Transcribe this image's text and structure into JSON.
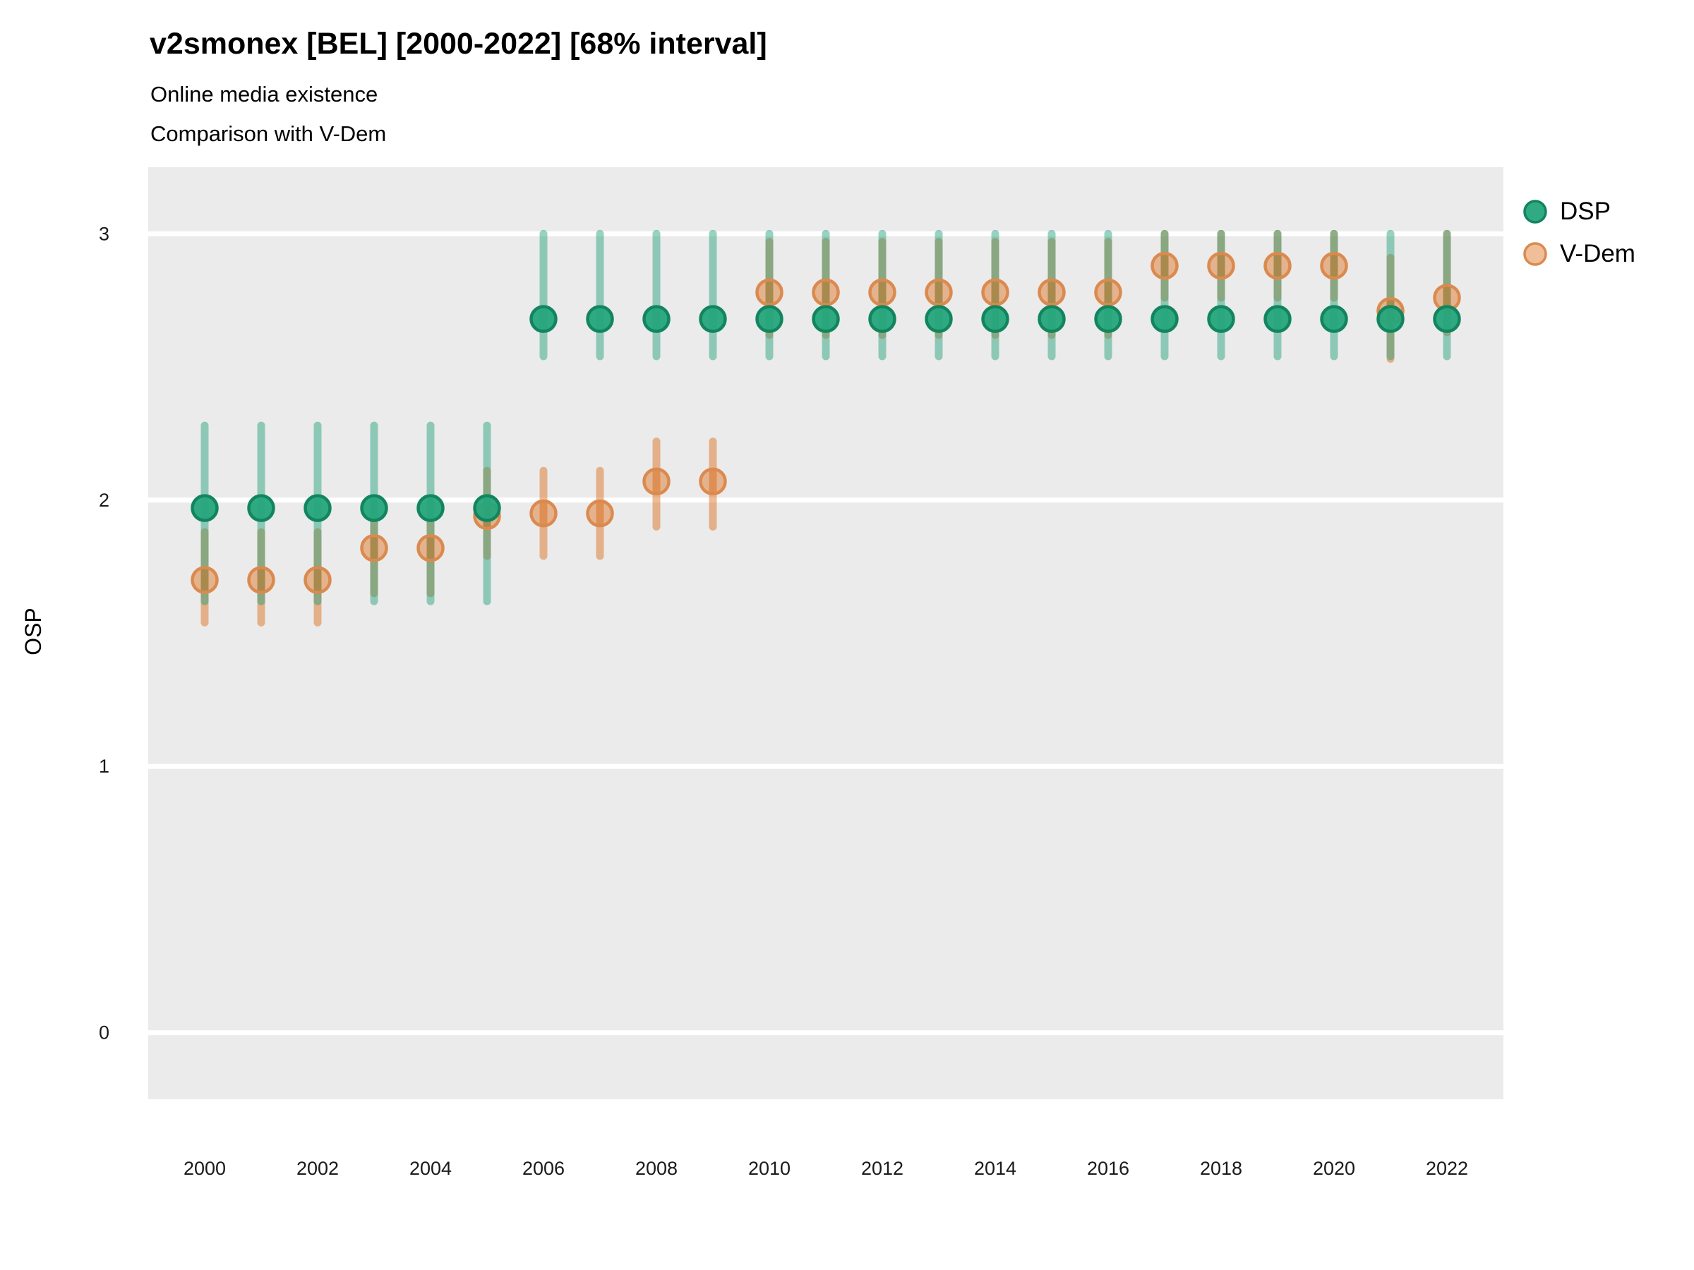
{
  "header": {
    "title": "v2smonex [BEL] [2000-2022] [68% interval]",
    "subtitle1": "Online media existence",
    "subtitle2": "Comparison with V-Dem"
  },
  "axes": {
    "y_label": "OSP",
    "y_ticks": [
      "0",
      "1",
      "2",
      "3"
    ],
    "x_ticks": [
      "2000",
      "2002",
      "2004",
      "2006",
      "2008",
      "2010",
      "2012",
      "2014",
      "2016",
      "2018",
      "2020",
      "2022"
    ]
  },
  "legend": {
    "dsp_label": "DSP",
    "vdem_label": "V-Dem"
  },
  "colors": {
    "dsp": "#1B9E77",
    "dsp_point_fill": "#25A57B",
    "dsp_point_stroke": "#12855F",
    "vdem": "#D95F02",
    "vdem_point_stroke": "#DB8A4F",
    "panel_bg": "#EBEBEB",
    "gridline": "#FFFFFF",
    "tick_text": "#1A1A1A",
    "interval_alpha": 0.45,
    "vdem_interval_alpha": 0.42,
    "vdem_point_alpha": 0.4,
    "dsp_point_alpha": 0.95
  },
  "chart_data": {
    "type": "scatter",
    "title": "v2smonex [BEL] [2000-2022] [68% interval]",
    "subtitle": "Online media existence — Comparison with V-Dem",
    "xlabel": "",
    "ylabel": "OSP",
    "grid": "major-horizontal-white",
    "legend_position": "top-right",
    "interval": "68%",
    "xlim": [
      1999,
      2023
    ],
    "ylim": [
      -0.25,
      3.25
    ],
    "x": [
      2000,
      2001,
      2002,
      2003,
      2004,
      2005,
      2006,
      2007,
      2008,
      2009,
      2010,
      2011,
      2012,
      2013,
      2014,
      2015,
      2016,
      2017,
      2018,
      2019,
      2020,
      2021,
      2022
    ],
    "series": [
      {
        "name": "DSP",
        "values": [
          1.97,
          1.97,
          1.97,
          1.97,
          1.97,
          1.97,
          2.68,
          2.68,
          2.68,
          2.68,
          2.68,
          2.68,
          2.68,
          2.68,
          2.68,
          2.68,
          2.68,
          2.68,
          2.68,
          2.68,
          2.68,
          2.68,
          2.68
        ],
        "low": [
          1.62,
          1.62,
          1.62,
          1.62,
          1.62,
          1.62,
          2.54,
          2.54,
          2.54,
          2.54,
          2.54,
          2.54,
          2.54,
          2.54,
          2.54,
          2.54,
          2.54,
          2.54,
          2.54,
          2.54,
          2.54,
          2.54,
          2.54
        ],
        "high": [
          2.28,
          2.28,
          2.28,
          2.28,
          2.28,
          2.28,
          3.0,
          3.0,
          3.0,
          3.0,
          3.0,
          3.0,
          3.0,
          3.0,
          3.0,
          3.0,
          3.0,
          3.0,
          3.0,
          3.0,
          3.0,
          3.0,
          3.0
        ]
      },
      {
        "name": "V-Dem",
        "values": [
          1.7,
          1.7,
          1.7,
          1.82,
          1.82,
          1.94,
          1.95,
          1.95,
          2.07,
          2.07,
          2.78,
          2.78,
          2.78,
          2.78,
          2.78,
          2.78,
          2.78,
          2.88,
          2.88,
          2.88,
          2.88,
          2.71,
          2.76
        ],
        "low": [
          1.54,
          1.54,
          1.54,
          1.65,
          1.65,
          1.79,
          1.79,
          1.79,
          1.9,
          1.9,
          2.62,
          2.62,
          2.62,
          2.62,
          2.62,
          2.62,
          2.62,
          2.76,
          2.76,
          2.76,
          2.76,
          2.53,
          2.63
        ],
        "high": [
          1.88,
          1.88,
          1.88,
          1.99,
          1.99,
          2.11,
          2.11,
          2.11,
          2.22,
          2.22,
          2.97,
          2.97,
          2.97,
          2.97,
          2.97,
          2.97,
          2.97,
          3.0,
          3.0,
          3.0,
          3.0,
          2.91,
          3.0
        ]
      }
    ]
  }
}
